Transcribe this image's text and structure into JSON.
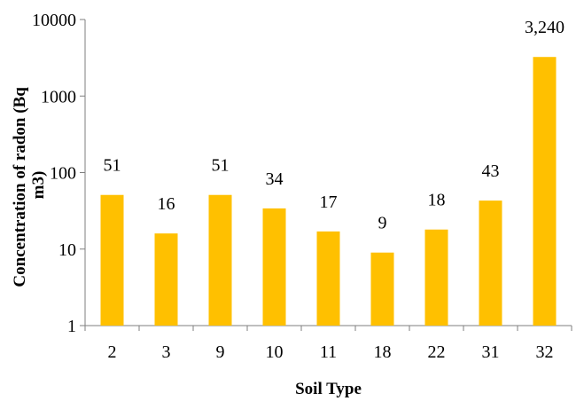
{
  "chart_data": {
    "type": "bar",
    "title": "",
    "xlabel": "Soil Type",
    "ylabel": "Concentration of radon (Bq m3)",
    "ylabel_lines": [
      "Concentration of radon (Bq",
      "m3)"
    ],
    "y_scale": "log",
    "ylim": [
      1,
      10000
    ],
    "y_ticks": [
      1,
      10,
      100,
      1000,
      10000
    ],
    "y_tick_labels": [
      "1",
      "10",
      "100",
      "1000",
      "10000"
    ],
    "grid": false,
    "legend": "none",
    "categories": [
      "2",
      "3",
      "9",
      "10",
      "11",
      "18",
      "22",
      "31",
      "32"
    ],
    "values": [
      51,
      16,
      51,
      34,
      17,
      9,
      18,
      43,
      3240
    ],
    "labels": [
      "51",
      "16",
      "51",
      "34",
      "17",
      "9",
      "18",
      "43",
      "3,240"
    ],
    "bar_color": "#FFC000"
  }
}
